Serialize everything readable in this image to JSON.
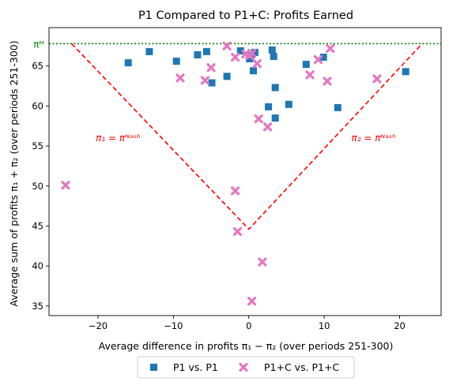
{
  "chart_data": {
    "type": "scatter",
    "title": "P1 Compared to P1+C: Profits Earned",
    "xlabel": "Average difference in profits π₁ − π₂ (over periods 251-300)",
    "ylabel": "Average sum of profits π₁ + π₂ (over periods 251-300)",
    "xlim": [
      -26.5,
      25.5
    ],
    "ylim": [
      33.8,
      69.8
    ],
    "x_ticks": [
      -20,
      -10,
      0,
      10,
      20
    ],
    "y_ticks": [
      35,
      40,
      45,
      50,
      55,
      60,
      65
    ],
    "grid": false,
    "legend_position": "bottom-center",
    "reference_line": {
      "y": 67.8,
      "label": "πᴹ",
      "color": "#008000",
      "style": "dotted"
    },
    "nash_lines": {
      "color": "#ff0000",
      "style": "dashed",
      "points": [
        [
          -23.5,
          67.8
        ],
        [
          0,
          44.6
        ],
        [
          23,
          67.8
        ]
      ],
      "left_label": "π₁ = πᴺᵃˢʰ",
      "right_label": "π₂ = πᴺᵃˢʰ"
    },
    "series": [
      {
        "name": "P1 vs. P1",
        "marker": "square",
        "color": "#1f77b4",
        "points": [
          [
            -16,
            65.4
          ],
          [
            -13.2,
            66.8
          ],
          [
            -9.6,
            65.6
          ],
          [
            -6.8,
            66.4
          ],
          [
            -5.6,
            66.8
          ],
          [
            -4.9,
            62.9
          ],
          [
            -2.9,
            63.7
          ],
          [
            -1.1,
            66.9
          ],
          [
            0.1,
            65.9
          ],
          [
            0.3,
            66.4
          ],
          [
            0.6,
            64.4
          ],
          [
            0.8,
            66.7
          ],
          [
            2.6,
            59.9
          ],
          [
            3.1,
            67.0
          ],
          [
            3.3,
            66.2
          ],
          [
            3.5,
            58.5
          ],
          [
            3.5,
            62.3
          ],
          [
            5.3,
            60.2
          ],
          [
            7.6,
            65.2
          ],
          [
            9.9,
            66.1
          ],
          [
            11.8,
            59.8
          ],
          [
            20.8,
            64.3
          ]
        ]
      },
      {
        "name": "P1+C vs. P1+C",
        "marker": "x",
        "color": "#e377c2",
        "points": [
          [
            -24.3,
            50.1
          ],
          [
            -9.1,
            63.5
          ],
          [
            -5.8,
            63.2
          ],
          [
            -5,
            64.8
          ],
          [
            -2.9,
            67.5
          ],
          [
            -1.8,
            66.1
          ],
          [
            -1.8,
            49.4
          ],
          [
            -1.5,
            44.3
          ],
          [
            -0.4,
            66.5
          ],
          [
            0.1,
            66.3
          ],
          [
            0.4,
            66.6
          ],
          [
            0.4,
            35.6
          ],
          [
            1.1,
            65.3
          ],
          [
            1.3,
            58.4
          ],
          [
            1.8,
            40.5
          ],
          [
            2.5,
            57.4
          ],
          [
            8.1,
            63.9
          ],
          [
            9.2,
            65.8
          ],
          [
            10.4,
            63.1
          ],
          [
            10.8,
            67.2
          ],
          [
            17,
            63.4
          ]
        ]
      }
    ]
  }
}
